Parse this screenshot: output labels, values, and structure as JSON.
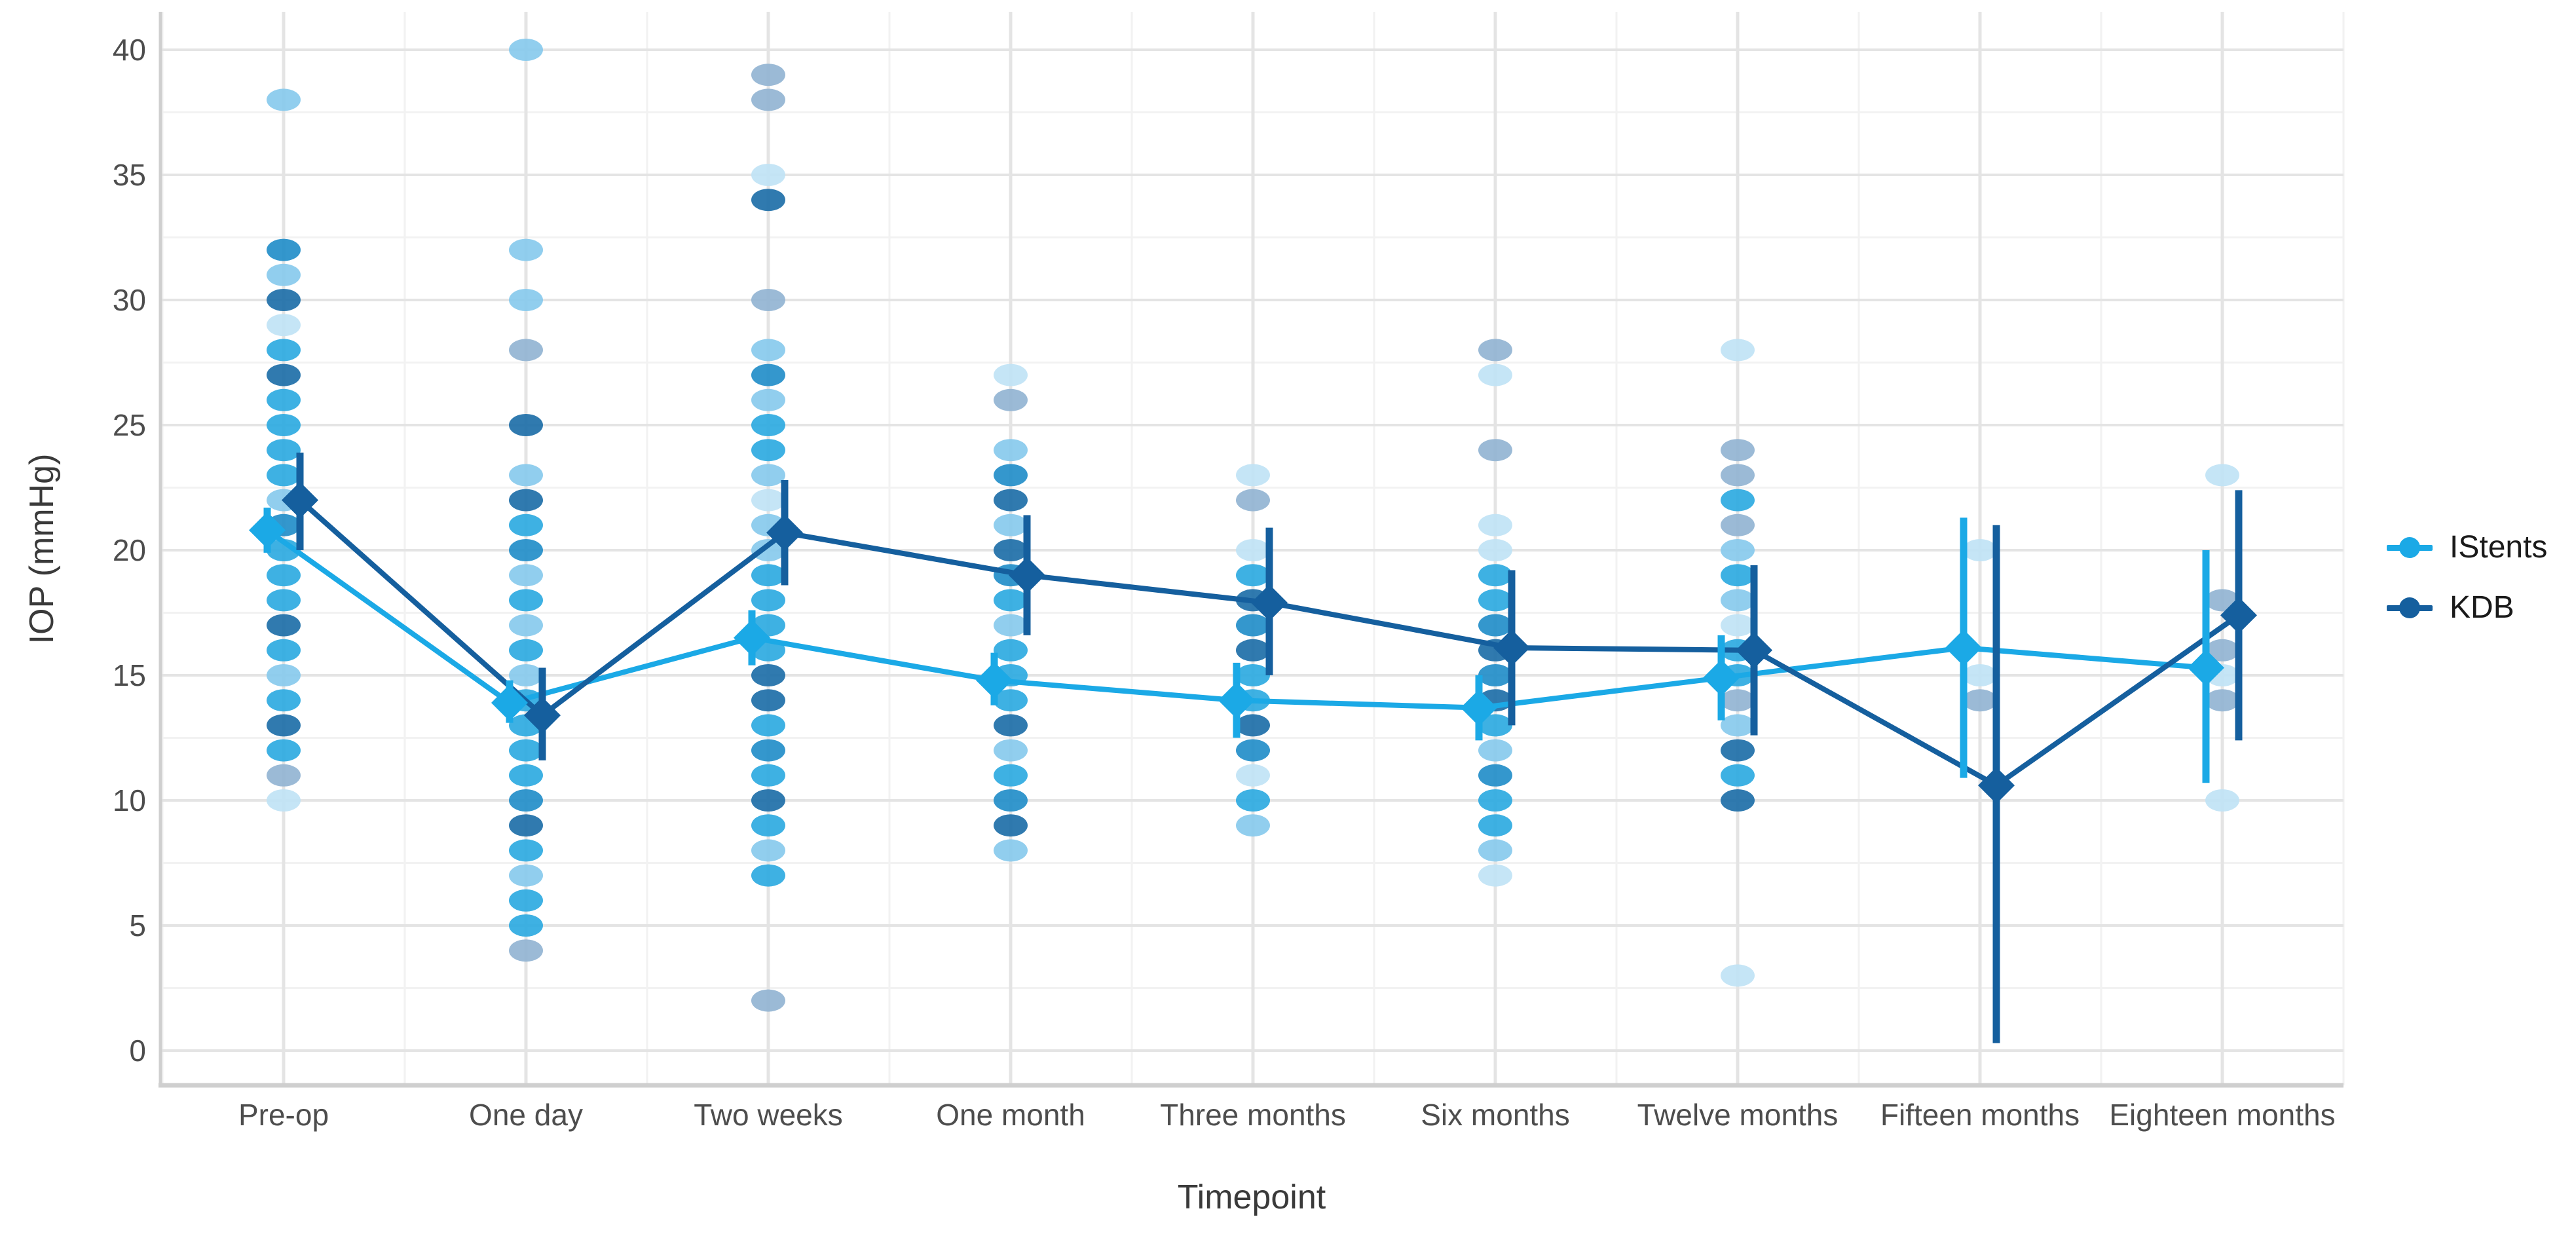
{
  "chart_data": {
    "type": "scatter",
    "title": "",
    "xlabel": "Timepoint",
    "ylabel": "IOP (mmHg)",
    "ylim": [
      0,
      40
    ],
    "y_ticks": [
      0,
      5,
      10,
      15,
      20,
      25,
      30,
      35,
      40
    ],
    "grid": "major and minor, light gray, on white panel",
    "legend_position": "right",
    "categories": [
      "Pre-op",
      "One day",
      "Two weeks",
      "One month",
      "Three months",
      "Six months",
      "Twelve months",
      "Fifteen months",
      "Eighteen months"
    ],
    "series": [
      {
        "name": "IStents",
        "color": "#1BA9E6",
        "mean": [
          20.8,
          13.9,
          16.5,
          14.8,
          14.0,
          13.7,
          14.9,
          16.1,
          15.3
        ],
        "ci_low": [
          19.9,
          13.1,
          15.4,
          13.8,
          12.5,
          12.4,
          13.2,
          10.9,
          10.7
        ],
        "ci_high": [
          21.7,
          14.8,
          17.6,
          15.9,
          15.5,
          15.0,
          16.6,
          21.3,
          20.0
        ]
      },
      {
        "name": "KDB",
        "color": "#155F9E",
        "mean": [
          22.0,
          13.4,
          20.7,
          19.0,
          17.9,
          16.1,
          16.0,
          10.6,
          17.4
        ],
        "ci_low": [
          20.0,
          11.6,
          18.6,
          16.6,
          15.0,
          13.0,
          12.6,
          0.3,
          12.4
        ],
        "ci_high": [
          23.9,
          15.3,
          22.8,
          21.4,
          20.9,
          19.2,
          19.4,
          21.0,
          22.4
        ]
      }
    ],
    "raw_points": {
      "palette": {
        "c": "#29A8E0",
        "m": "#1E8CC8",
        "d": "#1A6CA6",
        "l2": "#85C9EC",
        "l1": "#BFE2F5",
        "g": "#90B3D2"
      },
      "by_timepoint": [
        [
          [
            38,
            "l2"
          ],
          [
            32,
            "m"
          ],
          [
            31,
            "l2"
          ],
          [
            30,
            "d"
          ],
          [
            29,
            "l1"
          ],
          [
            28,
            "c"
          ],
          [
            27,
            "d"
          ],
          [
            26,
            "c"
          ],
          [
            25,
            "c"
          ],
          [
            24,
            "c"
          ],
          [
            23,
            "c"
          ],
          [
            22,
            "l2"
          ],
          [
            21,
            "m"
          ],
          [
            20,
            "c"
          ],
          [
            19,
            "c"
          ],
          [
            18,
            "c"
          ],
          [
            17,
            "d"
          ],
          [
            16,
            "c"
          ],
          [
            15,
            "l2"
          ],
          [
            14,
            "c"
          ],
          [
            13,
            "d"
          ],
          [
            12,
            "c"
          ],
          [
            11,
            "g"
          ],
          [
            10,
            "l1"
          ]
        ],
        [
          [
            40,
            "l2"
          ],
          [
            32,
            "l2"
          ],
          [
            30,
            "l2"
          ],
          [
            28,
            "g"
          ],
          [
            25,
            "d"
          ],
          [
            23,
            "l2"
          ],
          [
            22,
            "d"
          ],
          [
            21,
            "c"
          ],
          [
            20,
            "m"
          ],
          [
            19,
            "l2"
          ],
          [
            18,
            "c"
          ],
          [
            17,
            "l2"
          ],
          [
            16,
            "c"
          ],
          [
            15,
            "l2"
          ],
          [
            14,
            "c"
          ],
          [
            13,
            "c"
          ],
          [
            12,
            "c"
          ],
          [
            11,
            "c"
          ],
          [
            10,
            "m"
          ],
          [
            9,
            "d"
          ],
          [
            8,
            "c"
          ],
          [
            7,
            "l2"
          ],
          [
            6,
            "c"
          ],
          [
            5,
            "c"
          ],
          [
            4,
            "g"
          ]
        ],
        [
          [
            39,
            "g"
          ],
          [
            38,
            "g"
          ],
          [
            35,
            "l1"
          ],
          [
            34,
            "d"
          ],
          [
            30,
            "g"
          ],
          [
            28,
            "l2"
          ],
          [
            27,
            "m"
          ],
          [
            26,
            "l2"
          ],
          [
            25,
            "c"
          ],
          [
            24,
            "c"
          ],
          [
            23,
            "l2"
          ],
          [
            22,
            "l1"
          ],
          [
            21,
            "l2"
          ],
          [
            20,
            "l2"
          ],
          [
            19,
            "c"
          ],
          [
            18,
            "c"
          ],
          [
            17,
            "c"
          ],
          [
            16,
            "c"
          ],
          [
            15,
            "d"
          ],
          [
            14,
            "d"
          ],
          [
            13,
            "c"
          ],
          [
            12,
            "m"
          ],
          [
            11,
            "c"
          ],
          [
            10,
            "d"
          ],
          [
            9,
            "c"
          ],
          [
            8,
            "l2"
          ],
          [
            7,
            "c"
          ],
          [
            2,
            "g"
          ]
        ],
        [
          [
            27,
            "l1"
          ],
          [
            26,
            "g"
          ],
          [
            24,
            "l2"
          ],
          [
            23,
            "m"
          ],
          [
            22,
            "d"
          ],
          [
            21,
            "l2"
          ],
          [
            20,
            "d"
          ],
          [
            19,
            "m"
          ],
          [
            18,
            "c"
          ],
          [
            17,
            "l2"
          ],
          [
            16,
            "c"
          ],
          [
            15,
            "c"
          ],
          [
            14,
            "c"
          ],
          [
            13,
            "d"
          ],
          [
            12,
            "l2"
          ],
          [
            11,
            "c"
          ],
          [
            10,
            "m"
          ],
          [
            9,
            "d"
          ],
          [
            8,
            "l2"
          ]
        ],
        [
          [
            23,
            "l1"
          ],
          [
            22,
            "g"
          ],
          [
            20,
            "l1"
          ],
          [
            19,
            "c"
          ],
          [
            18,
            "d"
          ],
          [
            17,
            "m"
          ],
          [
            16,
            "d"
          ],
          [
            15,
            "c"
          ],
          [
            14,
            "c"
          ],
          [
            13,
            "d"
          ],
          [
            12,
            "m"
          ],
          [
            11,
            "l1"
          ],
          [
            10,
            "c"
          ],
          [
            9,
            "l2"
          ]
        ],
        [
          [
            28,
            "g"
          ],
          [
            27,
            "l1"
          ],
          [
            24,
            "g"
          ],
          [
            21,
            "l1"
          ],
          [
            20,
            "l1"
          ],
          [
            19,
            "c"
          ],
          [
            18,
            "c"
          ],
          [
            17,
            "m"
          ],
          [
            16,
            "d"
          ],
          [
            15,
            "m"
          ],
          [
            14,
            "d"
          ],
          [
            13,
            "c"
          ],
          [
            12,
            "l2"
          ],
          [
            11,
            "m"
          ],
          [
            10,
            "c"
          ],
          [
            9,
            "c"
          ],
          [
            8,
            "l2"
          ],
          [
            7,
            "l1"
          ]
        ],
        [
          [
            28,
            "l1"
          ],
          [
            24,
            "g"
          ],
          [
            23,
            "g"
          ],
          [
            22,
            "c"
          ],
          [
            21,
            "g"
          ],
          [
            20,
            "l2"
          ],
          [
            19,
            "c"
          ],
          [
            18,
            "l2"
          ],
          [
            17,
            "l1"
          ],
          [
            16,
            "c"
          ],
          [
            15,
            "c"
          ],
          [
            14,
            "g"
          ],
          [
            13,
            "l2"
          ],
          [
            12,
            "d"
          ],
          [
            11,
            "c"
          ],
          [
            10,
            "d"
          ],
          [
            3,
            "l1"
          ]
        ],
        [
          [
            20,
            "l1"
          ],
          [
            15,
            "l1"
          ],
          [
            14,
            "g"
          ]
        ],
        [
          [
            23,
            "l1"
          ],
          [
            18,
            "g"
          ],
          [
            16,
            "g"
          ],
          [
            15,
            "l1"
          ],
          [
            14,
            "g"
          ],
          [
            10,
            "l1"
          ]
        ]
      ]
    }
  },
  "legend": {
    "items": [
      {
        "label": "IStents"
      },
      {
        "label": "KDB"
      }
    ]
  },
  "axes": {
    "x_title": "Timepoint",
    "y_title": "IOP (mmHg)"
  }
}
